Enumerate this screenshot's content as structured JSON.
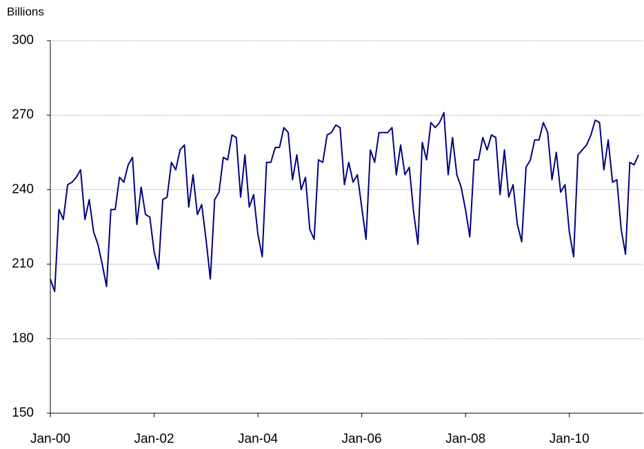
{
  "chart_data": {
    "type": "line",
    "y_label": "Billions",
    "categories": [
      "Jan-00",
      null,
      null,
      null,
      null,
      null,
      null,
      null,
      null,
      null,
      null,
      null,
      null,
      null,
      null,
      null,
      null,
      null,
      null,
      null,
      null,
      null,
      null,
      null,
      "Jan-02",
      null,
      null,
      null,
      null,
      null,
      null,
      null,
      null,
      null,
      null,
      null,
      null,
      null,
      null,
      null,
      null,
      null,
      null,
      null,
      null,
      null,
      null,
      null,
      "Jan-04",
      null,
      null,
      null,
      null,
      null,
      null,
      null,
      null,
      null,
      null,
      null,
      null,
      null,
      null,
      null,
      null,
      null,
      null,
      null,
      null,
      null,
      null,
      null,
      "Jan-06",
      null,
      null,
      null,
      null,
      null,
      null,
      null,
      null,
      null,
      null,
      null,
      null,
      null,
      null,
      null,
      null,
      null,
      null,
      null,
      null,
      null,
      null,
      null,
      "Jan-08",
      null,
      null,
      null,
      null,
      null,
      null,
      null,
      null,
      null,
      null,
      null,
      null,
      null,
      null,
      null,
      null,
      null,
      null,
      null,
      null,
      null,
      null,
      null,
      "Jan-10",
      null,
      null,
      null,
      null,
      null,
      null,
      null,
      null,
      null,
      null,
      null,
      null,
      null,
      null,
      null,
      null
    ],
    "series": [
      {
        "color": "#000080",
        "values": [
          204,
          199,
          232,
          228,
          242,
          243,
          245,
          248,
          228,
          236,
          223,
          218,
          210,
          201,
          232,
          232,
          245,
          243,
          250,
          253,
          226,
          241,
          230,
          229,
          215,
          208,
          236,
          237,
          251,
          248,
          256,
          258,
          233,
          246,
          230,
          234,
          220,
          204,
          236,
          239,
          253,
          252,
          262,
          261,
          237,
          254,
          233,
          238,
          222,
          213,
          251,
          251,
          257,
          257,
          265,
          263,
          244,
          254,
          240,
          245,
          224,
          220,
          252,
          251,
          262,
          263,
          266,
          265,
          242,
          251,
          243,
          246,
          233,
          220,
          256,
          251,
          263,
          263,
          263,
          265,
          246,
          258,
          246,
          249,
          231,
          218,
          259,
          252,
          267,
          265,
          267,
          271,
          246,
          261,
          246,
          241,
          232,
          221,
          252,
          252,
          261,
          256,
          262,
          261,
          238,
          256,
          237,
          242,
          226,
          219,
          249,
          252,
          260,
          260,
          267,
          263,
          244,
          255,
          239,
          242,
          223,
          213,
          254,
          256,
          258,
          262,
          268,
          267,
          248,
          260,
          243,
          244,
          224,
          214,
          251,
          250,
          254
        ]
      }
    ],
    "ylim": [
      150,
      300
    ],
    "yticks": [
      150,
      180,
      210,
      240,
      270,
      300
    ],
    "grid": true
  }
}
